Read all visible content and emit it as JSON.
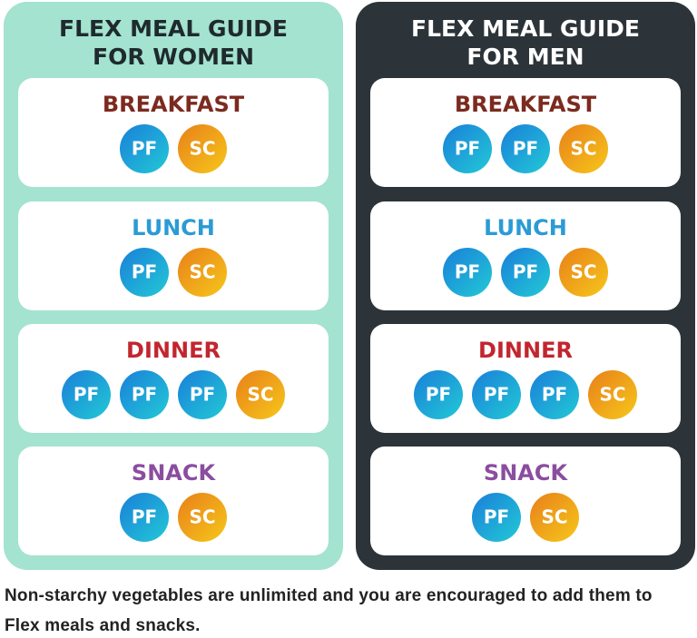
{
  "panels": [
    {
      "title_lines": [
        "FLEX MEAL GUIDE",
        "FOR WOMEN"
      ],
      "meals": [
        {
          "name": "BREAKFAST",
          "badges": [
            "PF",
            "SC"
          ]
        },
        {
          "name": "LUNCH",
          "badges": [
            "PF",
            "SC"
          ]
        },
        {
          "name": "DINNER",
          "badges": [
            "PF",
            "PF",
            "PF",
            "SC"
          ]
        },
        {
          "name": "SNACK",
          "badges": [
            "PF",
            "SC"
          ]
        }
      ]
    },
    {
      "title_lines": [
        "FLEX MEAL GUIDE",
        "FOR MEN"
      ],
      "meals": [
        {
          "name": "BREAKFAST",
          "badges": [
            "PF",
            "PF",
            "SC"
          ]
        },
        {
          "name": "LUNCH",
          "badges": [
            "PF",
            "PF",
            "SC"
          ]
        },
        {
          "name": "DINNER",
          "badges": [
            "PF",
            "PF",
            "PF",
            "SC"
          ]
        },
        {
          "name": "SNACK",
          "badges": [
            "PF",
            "SC"
          ]
        }
      ]
    }
  ],
  "footer": {
    "note": "Non-starchy vegetables are unlimited and you are encouraged to add them to Flex meals and snacks."
  }
}
